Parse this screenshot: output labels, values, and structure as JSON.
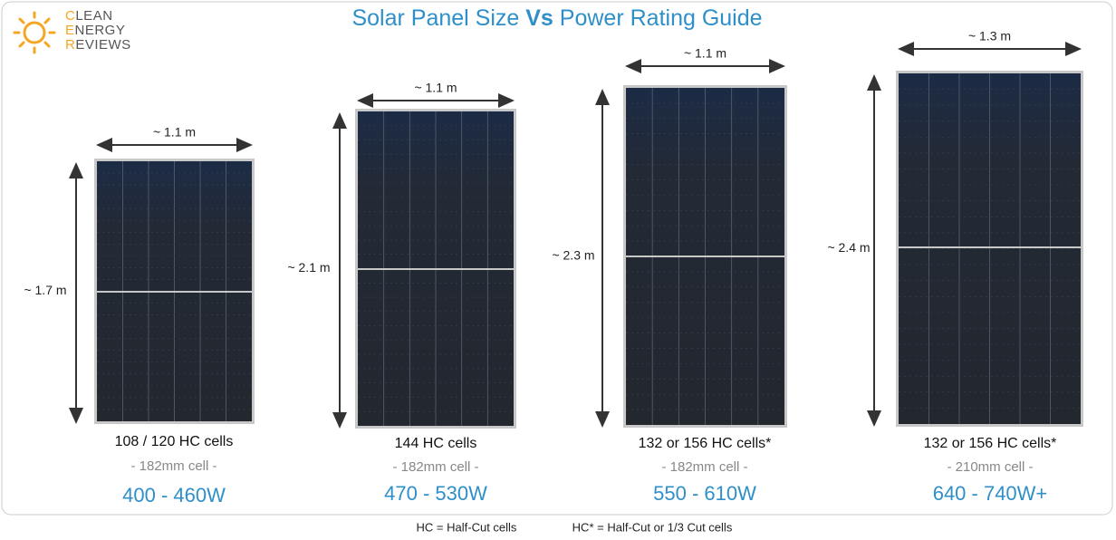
{
  "logo": {
    "lines": [
      "CLEAN",
      "ENERGY",
      "REVIEWS"
    ]
  },
  "title": {
    "parts": [
      "Solar Panel Size",
      "Vs",
      "Power Rating Guide"
    ]
  },
  "panels": [
    {
      "width": "~ 1.1 m",
      "height": "~ 1.7 m",
      "cells": "108 / 120 HC cells",
      "cell_size": "- 182mm cell -",
      "power": "400 - 460W"
    },
    {
      "width": "~ 1.1 m",
      "height": "~ 2.1 m",
      "cells": "144 HC cells",
      "cell_size": "- 182mm cell -",
      "power": "470 - 530W"
    },
    {
      "width": "~ 1.1 m",
      "height": "~ 2.3 m",
      "cells": "132 or 156 HC cells*",
      "cell_size": "- 182mm cell -",
      "power": "550 - 610W"
    },
    {
      "width": "~ 1.3 m",
      "height": "~ 2.4 m",
      "cells": "132 or 156 HC cells*",
      "cell_size": "- 210mm cell -",
      "power": "640 - 740W+"
    }
  ],
  "footnotes": [
    "HC = Half-Cut cells",
    "HC* = Half-Cut or 1/3 Cut cells"
  ]
}
